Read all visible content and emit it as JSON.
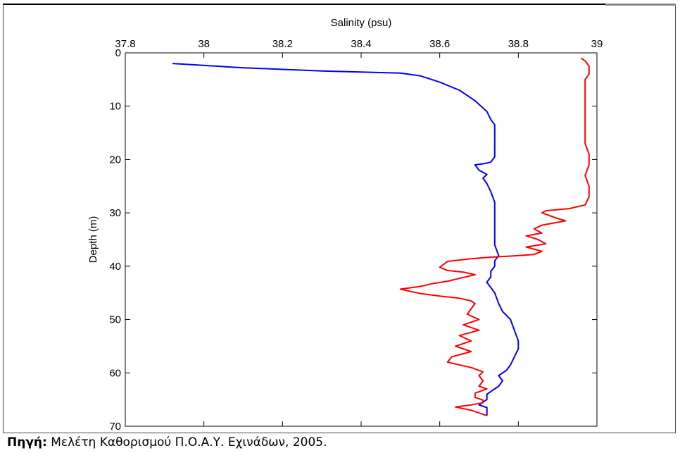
{
  "header_fragment": "",
  "caption": {
    "label": "Πηγή:",
    "text": "Μελέτη Καθορισμού Π.Ο.Α.Υ. Εχινάδων, 2005."
  },
  "chart_data": {
    "type": "line",
    "title": "",
    "xlabel": "Salinity (psu)",
    "ylabel": "Depth (m)",
    "xlim": [
      37.8,
      39.0
    ],
    "ylim": [
      0,
      70
    ],
    "y_inverted": true,
    "x_axis_position": "top",
    "x_ticks": [
      "37.8",
      "38",
      "38.2",
      "38.4",
      "38.6",
      "38.8",
      "39"
    ],
    "y_ticks": [
      "0",
      "10",
      "20",
      "30",
      "40",
      "50",
      "60",
      "70"
    ],
    "grid": false,
    "series": [
      {
        "color": "#0000ff",
        "points": [
          [
            37.92,
            2
          ],
          [
            38.1,
            2.8
          ],
          [
            38.3,
            3.4
          ],
          [
            38.5,
            3.8
          ],
          [
            38.55,
            4.3
          ],
          [
            38.6,
            5.5
          ],
          [
            38.65,
            7
          ],
          [
            38.69,
            9
          ],
          [
            38.72,
            11
          ],
          [
            38.73,
            12.5
          ],
          [
            38.74,
            13.5
          ],
          [
            38.74,
            16
          ],
          [
            38.74,
            18
          ],
          [
            38.74,
            19.5
          ],
          [
            38.73,
            20.5
          ],
          [
            38.71,
            20.8
          ],
          [
            38.69,
            21
          ],
          [
            38.7,
            22
          ],
          [
            38.72,
            22.8
          ],
          [
            38.71,
            23.5
          ],
          [
            38.72,
            24.5
          ],
          [
            38.73,
            26
          ],
          [
            38.74,
            28
          ],
          [
            38.74,
            30
          ],
          [
            38.74,
            32
          ],
          [
            38.74,
            34
          ],
          [
            38.74,
            36
          ],
          [
            38.75,
            38
          ],
          [
            38.74,
            39
          ],
          [
            38.74,
            40
          ],
          [
            38.73,
            41
          ],
          [
            38.73,
            42
          ],
          [
            38.72,
            43
          ],
          [
            38.73,
            44
          ],
          [
            38.74,
            45
          ],
          [
            38.75,
            47
          ],
          [
            38.76,
            48.5
          ],
          [
            38.78,
            50
          ],
          [
            38.79,
            52
          ],
          [
            38.8,
            54
          ],
          [
            38.8,
            55.5
          ],
          [
            38.79,
            57
          ],
          [
            38.78,
            58.5
          ],
          [
            38.77,
            59.5
          ],
          [
            38.75,
            60.5
          ],
          [
            38.76,
            61.5
          ],
          [
            38.75,
            62.5
          ],
          [
            38.74,
            63
          ],
          [
            38.72,
            64
          ],
          [
            38.72,
            65
          ],
          [
            38.7,
            66
          ],
          [
            38.72,
            66.5
          ],
          [
            38.72,
            67
          ],
          [
            38.72,
            68
          ]
        ]
      },
      {
        "color": "#ff0000",
        "points": [
          [
            38.96,
            1
          ],
          [
            38.97,
            1.5
          ],
          [
            38.98,
            2.5
          ],
          [
            38.98,
            4
          ],
          [
            38.97,
            5
          ],
          [
            38.97,
            7
          ],
          [
            38.97,
            9
          ],
          [
            38.97,
            11
          ],
          [
            38.97,
            13
          ],
          [
            38.97,
            15
          ],
          [
            38.97,
            17
          ],
          [
            38.98,
            19
          ],
          [
            38.98,
            21
          ],
          [
            38.97,
            23
          ],
          [
            38.98,
            25
          ],
          [
            38.98,
            27
          ],
          [
            38.97,
            28.5
          ],
          [
            38.93,
            29.2
          ],
          [
            38.87,
            29.6
          ],
          [
            38.86,
            30
          ],
          [
            38.89,
            30.8
          ],
          [
            38.92,
            31.5
          ],
          [
            38.86,
            32.3
          ],
          [
            38.84,
            33
          ],
          [
            38.86,
            33.8
          ],
          [
            38.82,
            34.3
          ],
          [
            38.85,
            35
          ],
          [
            38.87,
            35.8
          ],
          [
            38.82,
            36.4
          ],
          [
            38.86,
            37.2
          ],
          [
            38.84,
            37.8
          ],
          [
            38.78,
            38.1
          ],
          [
            38.73,
            38.3
          ],
          [
            38.68,
            38.6
          ],
          [
            38.62,
            39.1
          ],
          [
            38.6,
            40.2
          ],
          [
            38.62,
            40.8
          ],
          [
            38.66,
            41.1
          ],
          [
            38.69,
            41.6
          ],
          [
            38.66,
            42.1
          ],
          [
            38.62,
            42.8
          ],
          [
            38.58,
            43.3
          ],
          [
            38.55,
            43.8
          ],
          [
            38.5,
            44.3
          ],
          [
            38.53,
            44.8
          ],
          [
            38.55,
            45.1
          ],
          [
            38.6,
            45.6
          ],
          [
            38.65,
            46
          ],
          [
            38.68,
            46.5
          ],
          [
            38.69,
            47
          ],
          [
            38.68,
            48
          ],
          [
            38.67,
            49
          ],
          [
            38.7,
            50
          ],
          [
            38.66,
            51
          ],
          [
            38.7,
            52
          ],
          [
            38.65,
            53
          ],
          [
            38.68,
            54
          ],
          [
            38.64,
            55
          ],
          [
            38.68,
            56
          ],
          [
            38.63,
            57
          ],
          [
            38.62,
            58
          ],
          [
            38.68,
            59
          ],
          [
            38.71,
            59.8
          ],
          [
            38.7,
            60.5
          ],
          [
            38.71,
            61.5
          ],
          [
            38.7,
            62.5
          ],
          [
            38.72,
            63
          ],
          [
            38.69,
            63.8
          ],
          [
            38.69,
            64.6
          ],
          [
            38.71,
            65.1
          ],
          [
            38.71,
            65.6
          ],
          [
            38.68,
            66
          ],
          [
            38.64,
            66.4
          ],
          [
            38.68,
            67
          ],
          [
            38.72,
            68
          ]
        ]
      }
    ]
  }
}
